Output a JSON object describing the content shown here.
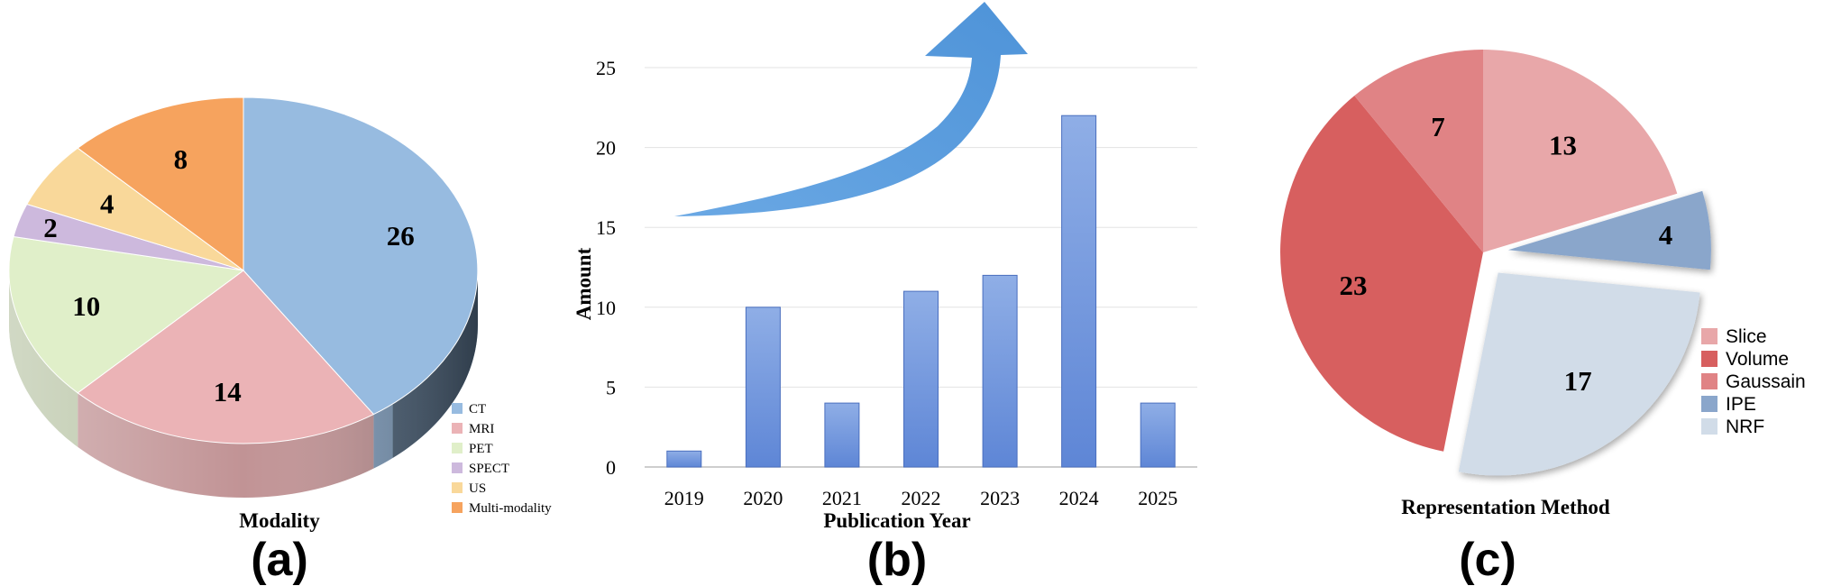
{
  "panels": {
    "a": {
      "letter": "(a)",
      "chart_title": "Modality",
      "chart_data": {
        "type": "pie",
        "title": "Modality",
        "labels": [
          "CT",
          "MRI",
          "PET",
          "SPECT",
          "US",
          "Multi-modality"
        ],
        "values": [
          26,
          14,
          10,
          2,
          4,
          8
        ],
        "colors": [
          "#97BBE0",
          "#EBB3B6",
          "#E0EFC9",
          "#CDB9DD",
          "#F9D89A",
          "#F6A35E"
        ],
        "legend_position": "right",
        "style": "3d"
      }
    },
    "b": {
      "letter": "(b)",
      "chart_data": {
        "type": "bar",
        "categories": [
          "2019",
          "2020",
          "2021",
          "2022",
          "2023",
          "2024",
          "2025"
        ],
        "values": [
          1,
          10,
          4,
          11,
          12,
          22,
          4
        ],
        "xlabel": "Publication Year",
        "ylabel": "Amount",
        "ylim": [
          0,
          25
        ],
        "yticks": [
          0,
          5,
          10,
          15,
          20,
          25
        ],
        "grid": true,
        "bar_color": "#7C9FDF",
        "annotation": "upward trend arrow"
      }
    },
    "c": {
      "letter": "(c)",
      "chart_title": "Representation Method",
      "chart_data": {
        "type": "pie",
        "title": "Representation Method",
        "labels": [
          "Slice",
          "Volume",
          "Gaussain",
          "IPE",
          "NRF"
        ],
        "values": [
          13,
          23,
          7,
          4,
          17
        ],
        "colors": [
          "#E8A7A9",
          "#D75F5F",
          "#E08385",
          "#8AA6CB",
          "#D1DCE8"
        ],
        "exploded": [
          "IPE",
          "NRF"
        ],
        "legend_position": "right"
      }
    }
  }
}
